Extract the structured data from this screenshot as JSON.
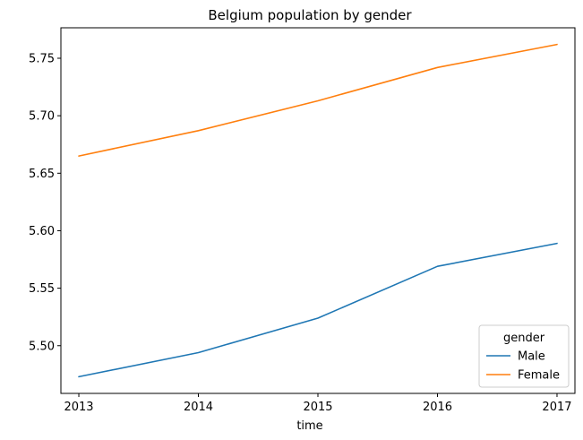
{
  "chart_data": {
    "type": "line",
    "title": "Belgium population by gender",
    "xlabel": "time",
    "ylabel": "",
    "x": [
      2013,
      2014,
      2015,
      2016,
      2017
    ],
    "x_tick_labels": [
      "2013",
      "2014",
      "2015",
      "2016",
      "2017"
    ],
    "y_ticks": [
      5.5,
      5.55,
      5.6,
      5.65,
      5.7,
      5.75
    ],
    "y_tick_labels": [
      "5.50",
      "5.55",
      "5.60",
      "5.65",
      "5.70",
      "5.75"
    ],
    "xlim": [
      2012.85,
      2017.15
    ],
    "ylim": [
      5.4585,
      5.7765
    ],
    "grid": false,
    "legend": {
      "title": "gender",
      "placement": "lower-right"
    },
    "series": [
      {
        "name": "Male",
        "color": "#1f77b4",
        "values": [
          5.473,
          5.494,
          5.524,
          5.569,
          5.589
        ]
      },
      {
        "name": "Female",
        "color": "#ff7f0e",
        "values": [
          5.665,
          5.687,
          5.713,
          5.742,
          5.762
        ]
      }
    ]
  }
}
